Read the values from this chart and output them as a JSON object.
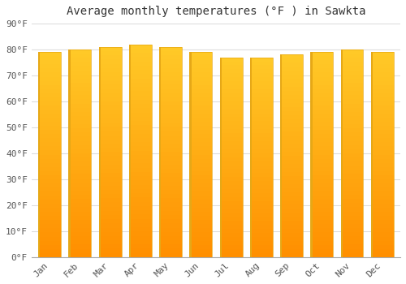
{
  "title": "Average monthly temperatures (°F ) in Sawkta",
  "months": [
    "Jan",
    "Feb",
    "Mar",
    "Apr",
    "May",
    "Jun",
    "Jul",
    "Aug",
    "Sep",
    "Oct",
    "Nov",
    "Dec"
  ],
  "values": [
    79,
    80,
    81,
    82,
    81,
    79,
    77,
    77,
    78,
    79,
    80,
    79
  ],
  "bar_color_top": "#FFCA28",
  "bar_color_bottom": "#FF8F00",
  "bar_color_edge": "#E6A817",
  "background_color": "#FFFFFF",
  "plot_bg_color": "#FFFFFF",
  "grid_color": "#DDDDDD",
  "ylim": [
    0,
    90
  ],
  "ytick_step": 10,
  "title_fontsize": 10,
  "tick_fontsize": 8,
  "font_family": "monospace",
  "bar_width": 0.75
}
